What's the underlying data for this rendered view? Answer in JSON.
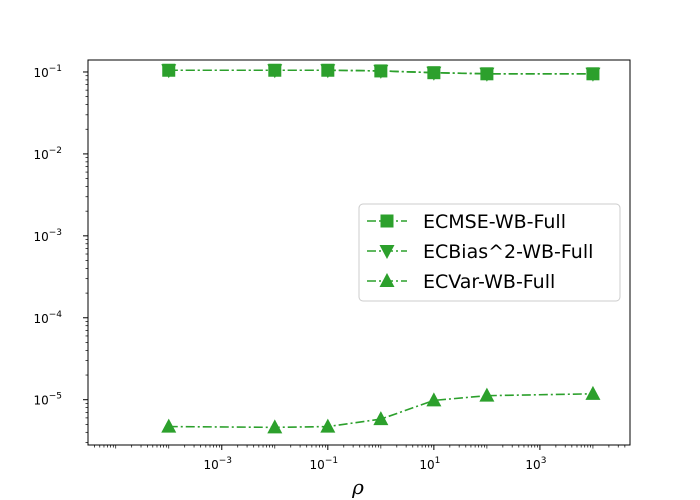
{
  "chart_data": {
    "type": "line",
    "xscale": "log",
    "yscale": "log",
    "xlabel": "ρ",
    "ylabel": "",
    "xlim": [
      3e-06,
      50000
    ],
    "ylim": [
      2.8e-06,
      0.14
    ],
    "x": [
      0.0001,
      0.01,
      0.1,
      1,
      10,
      100,
      10000
    ],
    "x_ticks": [
      {
        "value": 0.001,
        "base": "10",
        "exp": "−3"
      },
      {
        "value": 0.1,
        "base": "10",
        "exp": "−1"
      },
      {
        "value": 10,
        "base": "10",
        "exp": "1"
      },
      {
        "value": 1000,
        "base": "10",
        "exp": "3"
      }
    ],
    "y_ticks": [
      {
        "value": 1e-05,
        "base": "10",
        "exp": "−5"
      },
      {
        "value": 0.0001,
        "base": "10",
        "exp": "−4"
      },
      {
        "value": 0.001,
        "base": "10",
        "exp": "−3"
      },
      {
        "value": 0.01,
        "base": "10",
        "exp": "−2"
      },
      {
        "value": 0.1,
        "base": "10",
        "exp": "−1"
      }
    ],
    "series": [
      {
        "name": "ECMSE-WB-Full",
        "marker": "square",
        "color": "#2ca02c",
        "linestyle": "dashdot",
        "values": [
          0.105,
          0.105,
          0.105,
          0.103,
          0.098,
          0.095,
          0.095
        ]
      },
      {
        "name": "ECBias^2-WB-Full",
        "marker": "triangle-down",
        "color": "#2ca02c",
        "linestyle": "dashdot",
        "values": [
          0.105,
          0.105,
          0.105,
          0.103,
          0.098,
          0.095,
          0.095
        ]
      },
      {
        "name": "ECVar-WB-Full",
        "marker": "triangle-up",
        "color": "#2ca02c",
        "linestyle": "dashdot",
        "values": [
          4.7e-06,
          4.6e-06,
          4.7e-06,
          5.8e-06,
          9.8e-06,
          1.12e-05,
          1.18e-05
        ]
      }
    ],
    "legend_position": "center-right",
    "grid": false
  }
}
